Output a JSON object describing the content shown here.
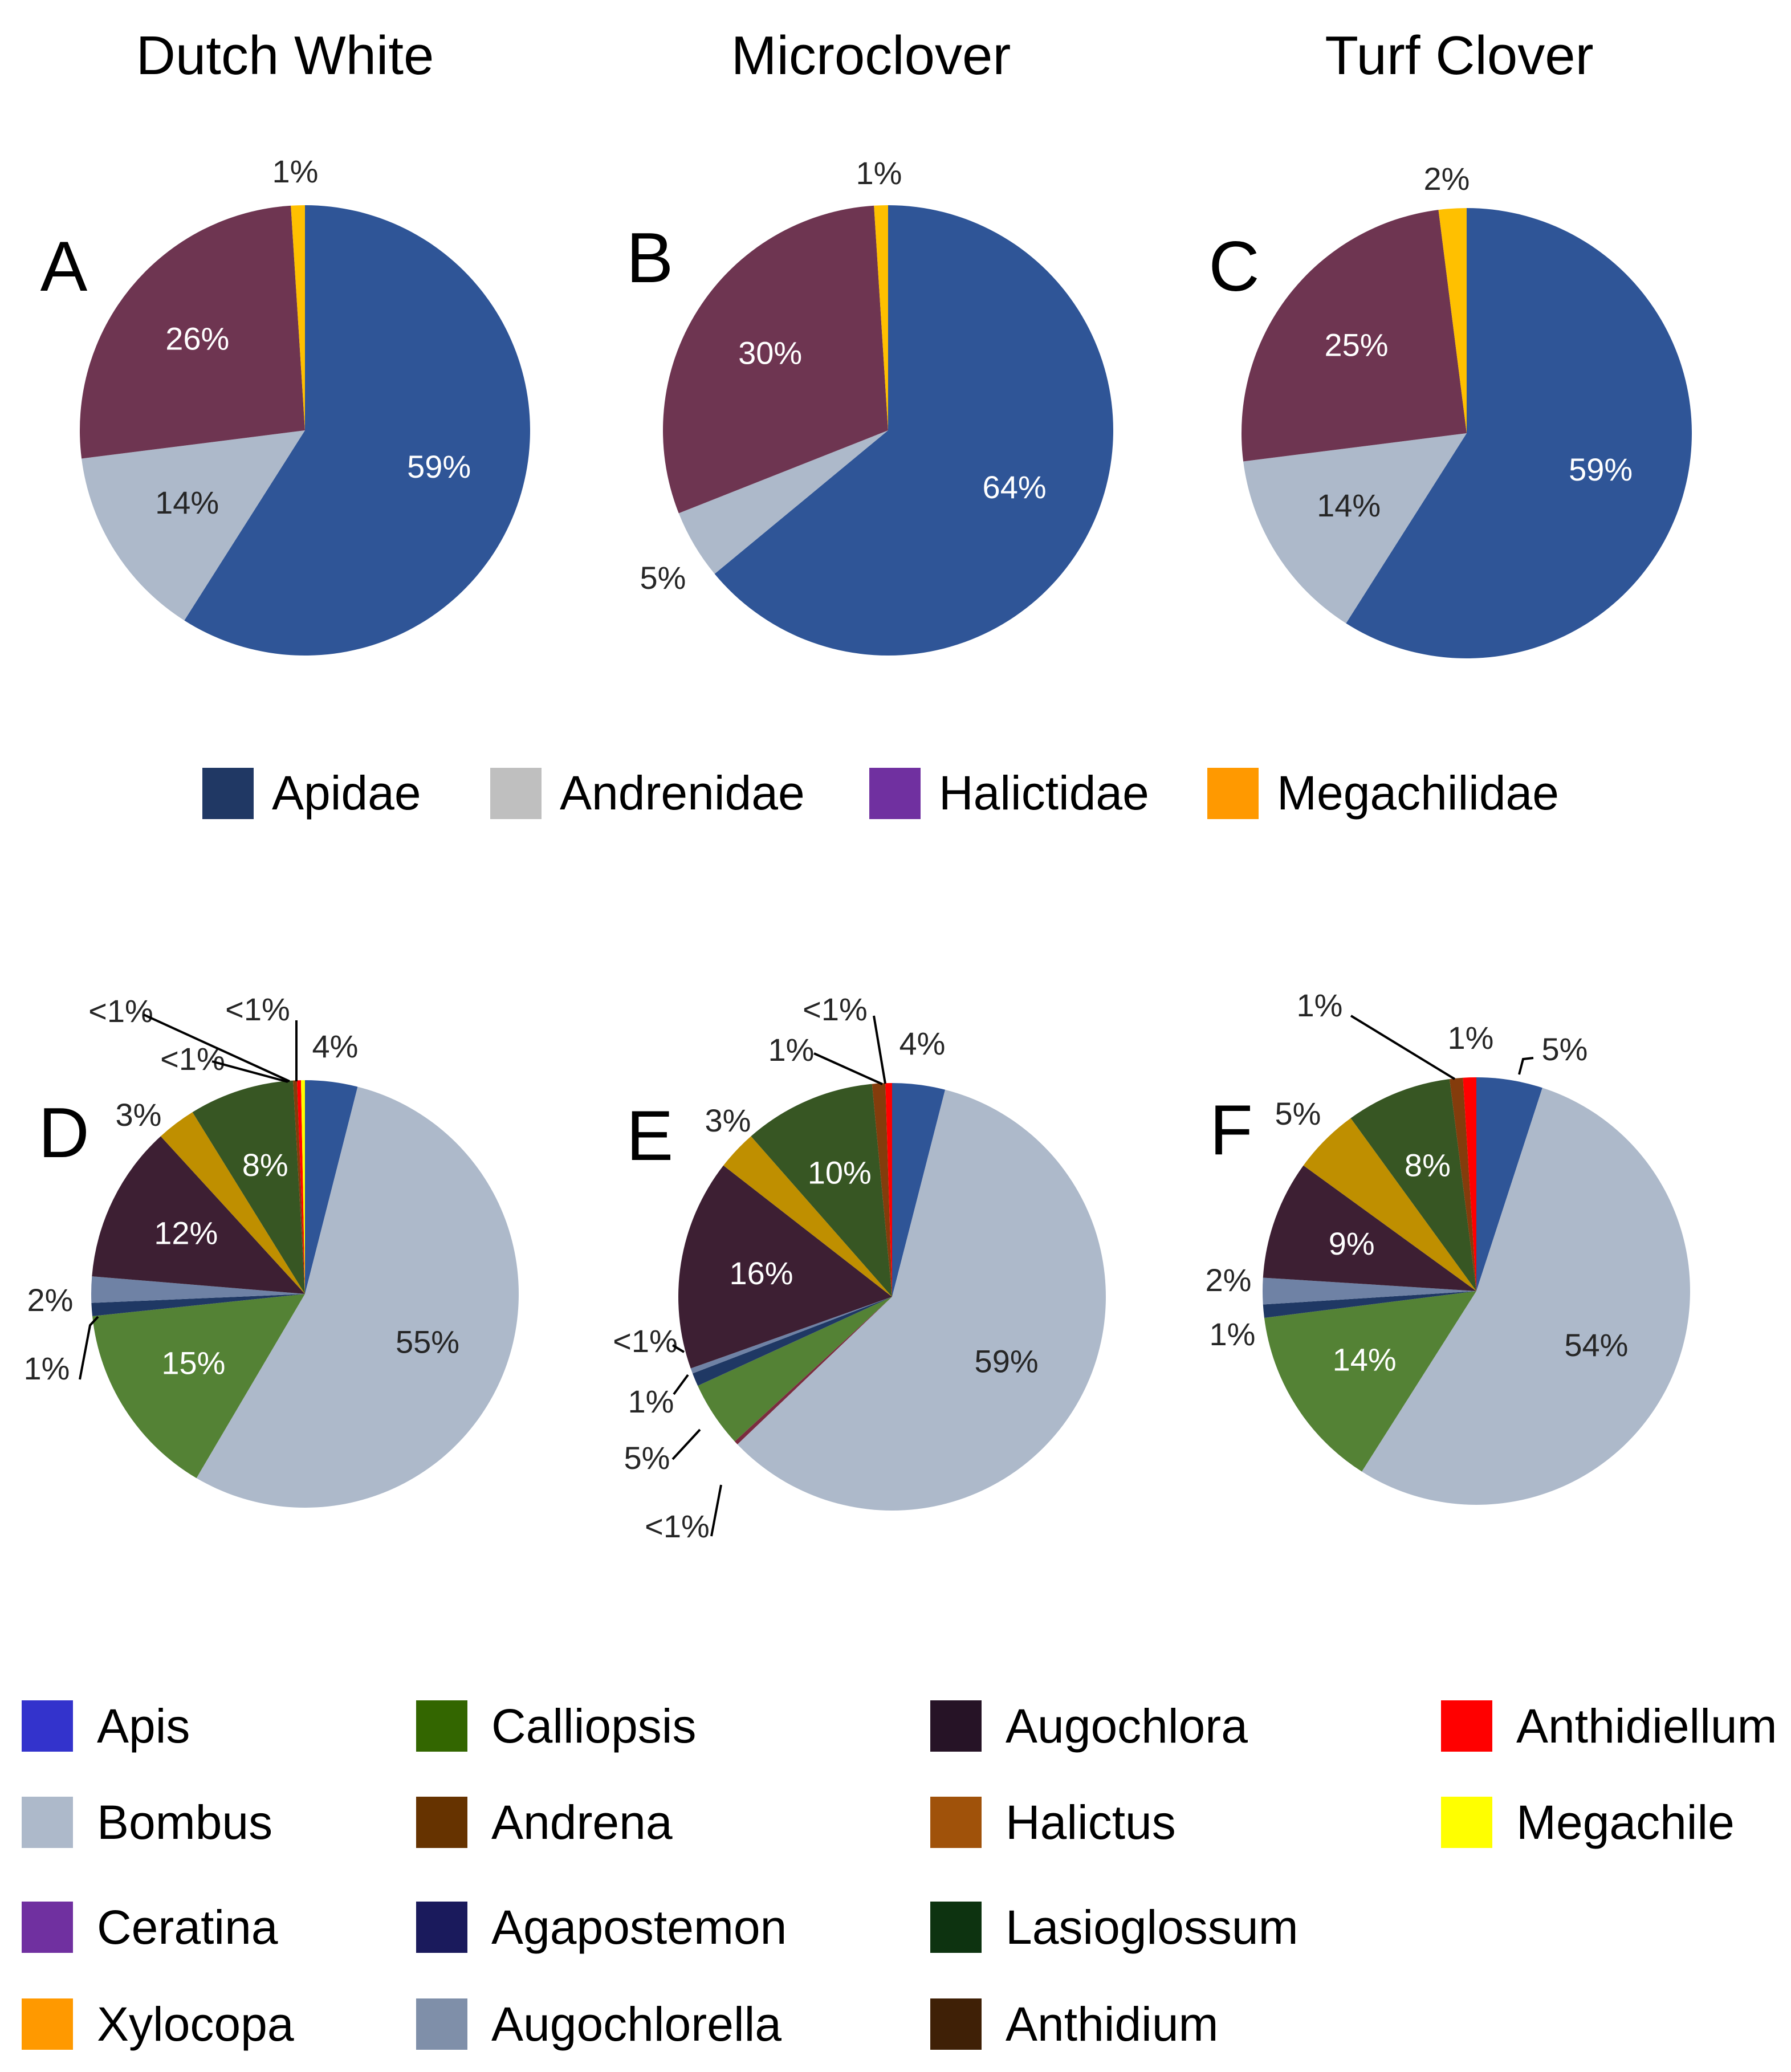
{
  "column_titles": [
    "Dutch White",
    "Microclover",
    "Turf Clover"
  ],
  "legend_top": [
    {
      "name": "Apidae",
      "color": "#203864"
    },
    {
      "name": "Andrenidae",
      "color": "#BFBFBF"
    },
    {
      "name": "Halictidae",
      "color": "#7030A0"
    },
    {
      "name": "Megachilidae",
      "color": "#FF9900"
    }
  ],
  "legend_bottom": [
    {
      "name": "Apis",
      "color": "#3333CC"
    },
    {
      "name": "Bombus",
      "color": "#ADB9CA"
    },
    {
      "name": "Ceratina",
      "color": "#7030A0"
    },
    {
      "name": "Xylocopa",
      "color": "#FF9900"
    },
    {
      "name": "Calliopsis",
      "color": "#336600"
    },
    {
      "name": "Andrena",
      "color": "#663300"
    },
    {
      "name": "Agapostemon",
      "color": "#1A1A5C"
    },
    {
      "name": "Augochlorella",
      "color": "#7F8FA9"
    },
    {
      "name": "Augochlora",
      "color": "#261326"
    },
    {
      "name": "Halictus",
      "color": "#A0520A"
    },
    {
      "name": "Lasioglossum",
      "color": "#0D3310"
    },
    {
      "name": "Anthidium",
      "color": "#3F2006"
    },
    {
      "name": "Anthidiellum",
      "color": "#FF0000"
    },
    {
      "name": "Megachile",
      "color": "#FFFF00"
    }
  ],
  "chart_data": [
    {
      "panel": "A",
      "type": "pie",
      "title": "Dutch White",
      "slices": [
        {
          "name": "Apidae",
          "value": 59,
          "label": "59%",
          "color": "#2F5597",
          "label_color": "#FFFFFF"
        },
        {
          "name": "Andrenidae",
          "value": 14,
          "label": "14%",
          "color": "#ADB9CA",
          "label_color": "#262626"
        },
        {
          "name": "Halictidae",
          "value": 26,
          "label": "26%",
          "color": "#6E3551",
          "label_color": "#FFFFFF"
        },
        {
          "name": "Megachilidae",
          "value": 1,
          "label": "1%",
          "color": "#FFC000",
          "label_color": "#262626"
        }
      ]
    },
    {
      "panel": "B",
      "type": "pie",
      "title": "Microclover",
      "slices": [
        {
          "name": "Apidae",
          "value": 64,
          "label": "64%",
          "color": "#2F5597",
          "label_color": "#FFFFFF"
        },
        {
          "name": "Andrenidae",
          "value": 5,
          "label": "5%",
          "color": "#ADB9CA",
          "label_color": "#262626"
        },
        {
          "name": "Halictidae",
          "value": 30,
          "label": "30%",
          "color": "#6E3551",
          "label_color": "#FFFFFF"
        },
        {
          "name": "Megachilidae",
          "value": 1,
          "label": "1%",
          "color": "#FFC000",
          "label_color": "#262626"
        }
      ]
    },
    {
      "panel": "C",
      "type": "pie",
      "title": "Turf Clover",
      "slices": [
        {
          "name": "Apidae",
          "value": 59,
          "label": "59%",
          "color": "#2F5597",
          "label_color": "#FFFFFF"
        },
        {
          "name": "Andrenidae",
          "value": 14,
          "label": "14%",
          "color": "#ADB9CA",
          "label_color": "#262626"
        },
        {
          "name": "Halictidae",
          "value": 25,
          "label": "25%",
          "color": "#6E3551",
          "label_color": "#FFFFFF"
        },
        {
          "name": "Megachilidae",
          "value": 2,
          "label": "2%",
          "color": "#FFC000",
          "label_color": "#262626"
        }
      ]
    },
    {
      "panel": "D",
      "type": "pie",
      "title": "Dutch White",
      "slices": [
        {
          "name": "Apis",
          "value": 4,
          "label": "4%",
          "color": "#2F5597",
          "label_color": "#262626"
        },
        {
          "name": "Bombus",
          "value": 55,
          "label": "55%",
          "color": "#ADB9CA",
          "label_color": "#262626"
        },
        {
          "name": "Calliopsis",
          "value": 15,
          "label": "15%",
          "color": "#548235",
          "label_color": "#FFFFFF"
        },
        {
          "name": "Agapostemon",
          "value": 1,
          "label": "1%",
          "color": "#1F3864",
          "label_color": "#262626"
        },
        {
          "name": "Augochlorella",
          "value": 2,
          "label": "2%",
          "color": "#6F82A5",
          "label_color": "#262626"
        },
        {
          "name": "Augochlora",
          "value": 12,
          "label": "12%",
          "color": "#3D1F33",
          "label_color": "#FFFFFF"
        },
        {
          "name": "Halictus",
          "value": 3,
          "label": "3%",
          "color": "#BF8F00",
          "label_color": "#262626"
        },
        {
          "name": "Lasioglossum",
          "value": 8,
          "label": "8%",
          "color": "#375623",
          "label_color": "#FFFFFF"
        },
        {
          "name": "Anthidium",
          "value": 0.3,
          "label": "<1%",
          "color": "#843C0C",
          "label_color": "#262626"
        },
        {
          "name": "Anthidiellum",
          "value": 0.3,
          "label": "<1%",
          "color": "#FF0000",
          "label_color": "#262626"
        },
        {
          "name": "Megachile",
          "value": 0.3,
          "label": "<1%",
          "color": "#FFFF00",
          "label_color": "#262626"
        }
      ]
    },
    {
      "panel": "E",
      "type": "pie",
      "title": "Microclover",
      "slices": [
        {
          "name": "Apis",
          "value": 4,
          "label": "4%",
          "color": "#2F5597",
          "label_color": "#262626"
        },
        {
          "name": "Bombus",
          "value": 59,
          "label": "59%",
          "color": "#ADB9CA",
          "label_color": "#262626"
        },
        {
          "name": "Andrena",
          "value": 0.3,
          "label": "<1%",
          "color": "#7B2C3F",
          "label_color": "#262626"
        },
        {
          "name": "Calliopsis",
          "value": 5,
          "label": "5%",
          "color": "#548235",
          "label_color": "#262626"
        },
        {
          "name": "Agapostemon",
          "value": 1,
          "label": "1%",
          "color": "#1F3864",
          "label_color": "#262626"
        },
        {
          "name": "Augochlorella",
          "value": 0.4,
          "label": "<1%",
          "color": "#6F82A5",
          "label_color": "#262626"
        },
        {
          "name": "Augochlora",
          "value": 16,
          "label": "16%",
          "color": "#3D1F33",
          "label_color": "#FFFFFF"
        },
        {
          "name": "Halictus",
          "value": 3,
          "label": "3%",
          "color": "#BF8F00",
          "label_color": "#262626"
        },
        {
          "name": "Lasioglossum",
          "value": 10,
          "label": "10%",
          "color": "#375623",
          "label_color": "#FFFFFF"
        },
        {
          "name": "Anthidium",
          "value": 1,
          "label": "1%",
          "color": "#843C0C",
          "label_color": "#262626"
        },
        {
          "name": "Anthidiellum",
          "value": 0.5,
          "label": "<1%",
          "color": "#FF0000",
          "label_color": "#262626"
        }
      ]
    },
    {
      "panel": "F",
      "type": "pie",
      "title": "Turf Clover",
      "slices": [
        {
          "name": "Apis",
          "value": 5,
          "label": "5%",
          "color": "#2F5597",
          "label_color": "#262626"
        },
        {
          "name": "Bombus",
          "value": 54,
          "label": "54%",
          "color": "#ADB9CA",
          "label_color": "#262626"
        },
        {
          "name": "Calliopsis",
          "value": 14,
          "label": "14%",
          "color": "#548235",
          "label_color": "#FFFFFF"
        },
        {
          "name": "Agapostemon",
          "value": 1,
          "label": "1%",
          "color": "#1F3864",
          "label_color": "#262626"
        },
        {
          "name": "Augochlorella",
          "value": 2,
          "label": "2%",
          "color": "#6F82A5",
          "label_color": "#262626"
        },
        {
          "name": "Augochlora",
          "value": 9,
          "label": "9%",
          "color": "#3D1F33",
          "label_color": "#FFFFFF"
        },
        {
          "name": "Halictus",
          "value": 5,
          "label": "5%",
          "color": "#BF8F00",
          "label_color": "#262626"
        },
        {
          "name": "Lasioglossum",
          "value": 8,
          "label": "8%",
          "color": "#375623",
          "label_color": "#FFFFFF"
        },
        {
          "name": "Anthidium",
          "value": 1,
          "label": "1%",
          "color": "#843C0C",
          "label_color": "#262626"
        },
        {
          "name": "Anthidiellum",
          "value": 1,
          "label": "1%",
          "color": "#FF0000",
          "label_color": "#262626"
        }
      ]
    }
  ]
}
